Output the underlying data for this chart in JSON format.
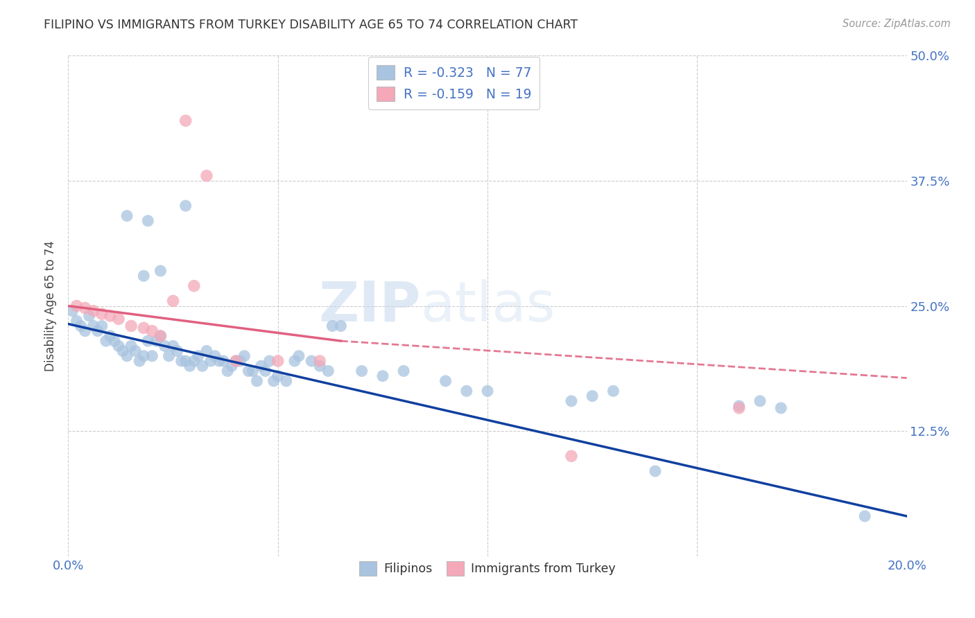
{
  "title": "FILIPINO VS IMMIGRANTS FROM TURKEY DISABILITY AGE 65 TO 74 CORRELATION CHART",
  "source": "Source: ZipAtlas.com",
  "ylabel": "Disability Age 65 to 74",
  "xlim": [
    0.0,
    0.2
  ],
  "ylim": [
    0.0,
    0.5
  ],
  "xticks": [
    0.0,
    0.05,
    0.1,
    0.15,
    0.2
  ],
  "yticks": [
    0.0,
    0.125,
    0.25,
    0.375,
    0.5
  ],
  "filipino_color": "#a8c4e0",
  "turkey_color": "#f4a8b8",
  "filipino_line_color": "#1040a0",
  "turkey_line_color": "#e06080",
  "watermark_zip": "ZIP",
  "watermark_atlas": "atlas",
  "legend_r_filipino": "-0.323",
  "legend_n_filipino": "77",
  "legend_r_turkey": "-0.159",
  "legend_n_turkey": "19",
  "legend_label_filipino": "Filipinos",
  "legend_label_turkey": "Immigrants from Turkey",
  "background_color": "#ffffff",
  "grid_color": "#cccccc",
  "title_color": "#333333",
  "axis_color": "#4472c4",
  "filipino_points": [
    [
      0.001,
      0.245
    ],
    [
      0.002,
      0.235
    ],
    [
      0.003,
      0.23
    ],
    [
      0.004,
      0.225
    ],
    [
      0.005,
      0.24
    ],
    [
      0.006,
      0.23
    ],
    [
      0.007,
      0.225
    ],
    [
      0.008,
      0.23
    ],
    [
      0.009,
      0.215
    ],
    [
      0.01,
      0.22
    ],
    [
      0.011,
      0.215
    ],
    [
      0.012,
      0.21
    ],
    [
      0.013,
      0.205
    ],
    [
      0.014,
      0.2
    ],
    [
      0.015,
      0.21
    ],
    [
      0.016,
      0.205
    ],
    [
      0.017,
      0.195
    ],
    [
      0.018,
      0.2
    ],
    [
      0.019,
      0.215
    ],
    [
      0.02,
      0.2
    ],
    [
      0.021,
      0.215
    ],
    [
      0.022,
      0.22
    ],
    [
      0.023,
      0.21
    ],
    [
      0.024,
      0.2
    ],
    [
      0.025,
      0.21
    ],
    [
      0.026,
      0.205
    ],
    [
      0.027,
      0.195
    ],
    [
      0.028,
      0.195
    ],
    [
      0.029,
      0.19
    ],
    [
      0.03,
      0.195
    ],
    [
      0.031,
      0.2
    ],
    [
      0.032,
      0.19
    ],
    [
      0.033,
      0.205
    ],
    [
      0.034,
      0.195
    ],
    [
      0.035,
      0.2
    ],
    [
      0.036,
      0.195
    ],
    [
      0.037,
      0.195
    ],
    [
      0.038,
      0.185
    ],
    [
      0.039,
      0.19
    ],
    [
      0.04,
      0.195
    ],
    [
      0.041,
      0.195
    ],
    [
      0.042,
      0.2
    ],
    [
      0.043,
      0.185
    ],
    [
      0.044,
      0.185
    ],
    [
      0.045,
      0.175
    ],
    [
      0.046,
      0.19
    ],
    [
      0.047,
      0.185
    ],
    [
      0.048,
      0.195
    ],
    [
      0.049,
      0.175
    ],
    [
      0.05,
      0.18
    ],
    [
      0.052,
      0.175
    ],
    [
      0.054,
      0.195
    ],
    [
      0.055,
      0.2
    ],
    [
      0.058,
      0.195
    ],
    [
      0.06,
      0.19
    ],
    [
      0.062,
      0.185
    ],
    [
      0.063,
      0.23
    ],
    [
      0.065,
      0.23
    ],
    [
      0.028,
      0.35
    ],
    [
      0.019,
      0.335
    ],
    [
      0.014,
      0.34
    ],
    [
      0.022,
      0.285
    ],
    [
      0.018,
      0.28
    ],
    [
      0.07,
      0.185
    ],
    [
      0.075,
      0.18
    ],
    [
      0.08,
      0.185
    ],
    [
      0.09,
      0.175
    ],
    [
      0.095,
      0.165
    ],
    [
      0.1,
      0.165
    ],
    [
      0.12,
      0.155
    ],
    [
      0.125,
      0.16
    ],
    [
      0.13,
      0.165
    ],
    [
      0.16,
      0.15
    ],
    [
      0.165,
      0.155
    ],
    [
      0.17,
      0.148
    ],
    [
      0.14,
      0.085
    ],
    [
      0.19,
      0.04
    ]
  ],
  "turkey_points": [
    [
      0.002,
      0.25
    ],
    [
      0.004,
      0.248
    ],
    [
      0.006,
      0.245
    ],
    [
      0.008,
      0.242
    ],
    [
      0.01,
      0.24
    ],
    [
      0.012,
      0.237
    ],
    [
      0.015,
      0.23
    ],
    [
      0.018,
      0.228
    ],
    [
      0.02,
      0.225
    ],
    [
      0.022,
      0.22
    ],
    [
      0.025,
      0.255
    ],
    [
      0.03,
      0.27
    ],
    [
      0.028,
      0.435
    ],
    [
      0.033,
      0.38
    ],
    [
      0.04,
      0.195
    ],
    [
      0.05,
      0.195
    ],
    [
      0.06,
      0.195
    ],
    [
      0.16,
      0.148
    ],
    [
      0.12,
      0.1
    ]
  ]
}
